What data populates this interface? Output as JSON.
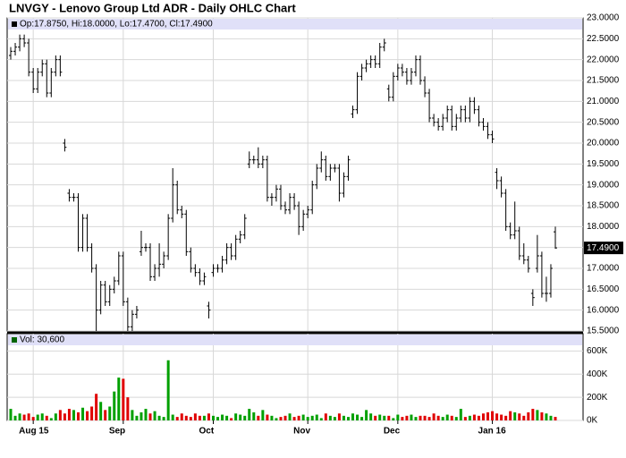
{
  "chart_data": {
    "type": "ohlc",
    "title": "LNVGY - Lenovo Group Ltd ADR - Daily OHLC Chart",
    "ohlc_label": "Op:17.8750, Hi:18.0000, Lo:17.4700, Cl:17.4900",
    "volume_label": "Vol: 30,600",
    "last_price_label": "17.4900",
    "categories": [
      null,
      null,
      null,
      null,
      null,
      "Aug 15",
      null,
      null,
      null,
      null,
      null,
      null,
      null,
      null,
      null,
      null,
      null,
      null,
      null,
      null,
      null,
      null,
      null,
      null,
      null,
      "Sep",
      null,
      null,
      null,
      null,
      null,
      null,
      null,
      null,
      null,
      null,
      null,
      null,
      null,
      null,
      null,
      null,
      null,
      null,
      null,
      "Oct",
      null,
      null,
      null,
      null,
      null,
      null,
      null,
      null,
      null,
      null,
      null,
      null,
      null,
      null,
      null,
      null,
      null,
      null,
      null,
      null,
      "Nov",
      null,
      null,
      null,
      null,
      null,
      null,
      null,
      null,
      null,
      null,
      null,
      null,
      null,
      null,
      null,
      null,
      null,
      null,
      null,
      "Dec",
      null,
      null,
      null,
      null,
      null,
      null,
      null,
      null,
      null,
      null,
      null,
      null,
      null,
      null,
      null,
      null,
      null,
      null,
      null,
      null,
      "Jan 16",
      null,
      null,
      null,
      null,
      null,
      null,
      null,
      null,
      null,
      null,
      null,
      null,
      null,
      null
    ],
    "open": [
      22.1,
      22.2,
      22.3,
      22.5,
      22.4,
      21.7,
      21.3,
      21.7,
      21.9,
      21.2,
      21.7,
      22.0,
      20.0,
      18.8,
      18.7,
      18.7,
      17.5,
      18.2,
      17.5,
      17.0,
      16.0,
      16.6,
      16.2,
      16.5,
      16.7,
      17.3,
      16.2,
      15.6,
      15.9,
      17.4,
      17.5,
      17.5,
      16.8,
      17.0,
      17.1,
      17.3,
      18.2,
      19.0,
      18.4,
      18.3,
      17.4,
      17.0,
      16.9,
      16.7,
      16.1,
      16.9,
      17.0,
      17.0,
      17.2,
      17.5,
      17.3,
      17.7,
      17.8,
      19.5,
      19.6,
      19.6,
      19.5,
      19.6,
      18.7,
      18.7,
      18.9,
      18.5,
      18.4,
      18.7,
      18.5,
      18.0,
      18.3,
      18.4,
      19.0,
      19.4,
      19.6,
      19.2,
      19.4,
      19.4,
      18.8,
      19.2,
      20.7,
      20.8,
      21.6,
      21.8,
      21.9,
      22.0,
      21.9,
      22.3,
      21.3,
      21.1,
      21.6,
      21.8,
      21.7,
      21.5,
      21.7,
      22.0,
      21.5,
      21.2,
      20.6,
      20.5,
      20.4,
      20.6,
      20.8,
      20.4,
      20.6,
      20.8,
      20.6,
      21.0,
      20.8,
      20.5,
      20.4,
      20.2,
      19.3,
      19.1,
      18.8,
      18.0,
      17.8,
      17.9,
      17.3,
      17.2,
      16.4,
      17.0,
      17.3,
      16.4,
      16.4,
      17.875
    ],
    "high": [
      22.3,
      22.4,
      22.6,
      22.6,
      22.5,
      21.8,
      21.8,
      22.0,
      22.0,
      21.8,
      22.1,
      22.1,
      20.1,
      18.9,
      18.8,
      18.8,
      18.3,
      18.3,
      17.6,
      17.1,
      16.7,
      16.7,
      16.6,
      16.8,
      17.4,
      17.4,
      16.3,
      16.0,
      16.1,
      17.9,
      17.6,
      17.6,
      17.1,
      17.6,
      17.4,
      18.3,
      19.4,
      19.1,
      18.5,
      18.4,
      17.5,
      17.1,
      17.0,
      16.9,
      16.2,
      17.1,
      17.1,
      17.3,
      17.6,
      17.6,
      17.8,
      17.9,
      18.3,
      19.8,
      19.7,
      19.9,
      19.7,
      19.7,
      18.8,
      19.0,
      19.0,
      18.6,
      18.8,
      18.8,
      18.6,
      18.4,
      18.5,
      19.1,
      19.5,
      19.8,
      19.7,
      19.5,
      19.5,
      19.5,
      19.3,
      19.7,
      20.9,
      21.7,
      21.9,
      22.0,
      22.1,
      22.1,
      22.4,
      22.5,
      21.4,
      21.7,
      21.9,
      21.9,
      21.8,
      21.8,
      22.1,
      22.1,
      21.6,
      21.3,
      20.7,
      20.6,
      20.7,
      20.9,
      20.9,
      20.7,
      20.9,
      20.9,
      21.1,
      21.1,
      20.9,
      20.6,
      20.5,
      20.3,
      19.4,
      19.2,
      18.9,
      18.1,
      18.6,
      18.0,
      17.6,
      17.3,
      16.5,
      17.8,
      17.4,
      16.8,
      17.1,
      18.0
    ],
    "low": [
      22.0,
      22.1,
      22.2,
      22.3,
      21.6,
      21.2,
      21.2,
      21.6,
      21.1,
      21.1,
      21.6,
      21.6,
      19.8,
      18.6,
      18.6,
      17.4,
      17.4,
      17.4,
      16.9,
      15.5,
      15.9,
      16.1,
      16.1,
      16.4,
      16.6,
      16.1,
      15.5,
      15.5,
      15.8,
      17.3,
      17.4,
      16.7,
      16.7,
      16.8,
      17.0,
      17.2,
      18.1,
      18.3,
      18.2,
      17.3,
      16.9,
      16.8,
      16.6,
      16.6,
      15.8,
      16.8,
      16.9,
      16.9,
      17.1,
      17.2,
      17.2,
      17.6,
      17.7,
      19.4,
      19.5,
      19.4,
      19.4,
      18.6,
      18.5,
      18.6,
      18.4,
      18.3,
      18.3,
      18.4,
      17.8,
      17.9,
      18.2,
      18.3,
      18.9,
      19.3,
      19.1,
      19.1,
      19.3,
      18.6,
      18.7,
      19.1,
      20.6,
      20.7,
      21.5,
      21.7,
      21.8,
      21.8,
      21.8,
      22.2,
      21.0,
      21.0,
      21.5,
      21.6,
      21.4,
      21.4,
      21.6,
      21.4,
      21.1,
      20.5,
      20.4,
      20.3,
      20.3,
      20.5,
      20.3,
      20.3,
      20.5,
      20.5,
      20.5,
      20.7,
      20.4,
      20.3,
      20.1,
      20.0,
      18.9,
      18.7,
      17.9,
      17.7,
      17.7,
      17.2,
      17.1,
      16.9,
      16.1,
      16.9,
      16.3,
      16.2,
      16.3,
      17.47
    ],
    "close": [
      22.2,
      22.3,
      22.5,
      22.4,
      21.7,
      21.3,
      21.7,
      21.9,
      21.2,
      21.7,
      22.0,
      21.7,
      19.9,
      18.7,
      18.7,
      17.5,
      18.2,
      17.5,
      17.0,
      16.0,
      16.6,
      16.2,
      16.5,
      16.7,
      17.3,
      16.2,
      15.6,
      15.9,
      16.0,
      17.5,
      17.5,
      16.8,
      17.0,
      17.1,
      17.3,
      18.2,
      19.0,
      18.4,
      18.3,
      17.4,
      17.0,
      16.9,
      16.7,
      16.8,
      16.0,
      17.0,
      17.0,
      17.2,
      17.5,
      17.3,
      17.7,
      17.8,
      18.2,
      19.6,
      19.6,
      19.5,
      19.6,
      18.7,
      18.7,
      18.9,
      18.5,
      18.4,
      18.7,
      18.5,
      18.0,
      18.3,
      18.4,
      19.0,
      19.4,
      19.6,
      19.2,
      19.4,
      19.4,
      18.8,
      19.2,
      19.6,
      20.8,
      21.6,
      21.8,
      21.9,
      22.0,
      21.9,
      22.3,
      22.4,
      21.1,
      21.6,
      21.8,
      21.7,
      21.5,
      21.7,
      22.0,
      21.5,
      21.2,
      20.6,
      20.5,
      20.4,
      20.6,
      20.8,
      20.4,
      20.6,
      20.8,
      20.6,
      21.0,
      20.8,
      20.5,
      20.4,
      20.2,
      20.1,
      19.1,
      18.8,
      18.0,
      17.8,
      17.9,
      17.3,
      17.2,
      17.0,
      16.3,
      17.3,
      16.4,
      16.4,
      17.0,
      17.49
    ],
    "volume": [
      100000,
      40000,
      60000,
      50000,
      60000,
      30000,
      50000,
      60000,
      40000,
      20000,
      60000,
      90000,
      60000,
      100000,
      90000,
      70000,
      110000,
      80000,
      120000,
      230000,
      160000,
      90000,
      120000,
      250000,
      370000,
      360000,
      200000,
      90000,
      40000,
      70000,
      100000,
      60000,
      80000,
      40000,
      30000,
      520000,
      50000,
      30000,
      60000,
      40000,
      30000,
      60000,
      40000,
      40000,
      60000,
      40000,
      30000,
      50000,
      40000,
      20000,
      60000,
      50000,
      40000,
      100000,
      70000,
      40000,
      90000,
      50000,
      40000,
      20000,
      30000,
      40000,
      60000,
      30000,
      40000,
      50000,
      30000,
      40000,
      50000,
      20000,
      60000,
      40000,
      30000,
      60000,
      40000,
      30000,
      60000,
      50000,
      30000,
      90000,
      60000,
      40000,
      50000,
      40000,
      40000,
      20000,
      50000,
      30000,
      40000,
      50000,
      30000,
      40000,
      40000,
      30000,
      60000,
      40000,
      30000,
      50000,
      40000,
      30000,
      100000,
      30000,
      40000,
      50000,
      40000,
      60000,
      70000,
      80000,
      60000,
      50000,
      40000,
      80000,
      70000,
      60000,
      40000,
      70000,
      100000,
      90000,
      70000,
      60000,
      40000,
      30600
    ],
    "ylim": [
      15.5,
      23.0
    ],
    "yticks": [
      {
        "value": 15.5,
        "label": "15.5000"
      },
      {
        "value": 16,
        "label": "16.0000"
      },
      {
        "value": 16.5,
        "label": "16.5000"
      },
      {
        "value": 17,
        "label": "17.0000"
      },
      {
        "value": 17.5,
        "label": "17.5000"
      },
      {
        "value": 18,
        "label": "18.0000"
      },
      {
        "value": 18.5,
        "label": "18.5000"
      },
      {
        "value": 19,
        "label": "19.0000"
      },
      {
        "value": 19.5,
        "label": "19.5000"
      },
      {
        "value": 20,
        "label": "20.0000"
      },
      {
        "value": 20.5,
        "label": "20.5000"
      },
      {
        "value": 21,
        "label": "21.0000"
      },
      {
        "value": 21.5,
        "label": "21.5000"
      },
      {
        "value": 22,
        "label": "22.0000"
      },
      {
        "value": 22.5,
        "label": "22.5000"
      },
      {
        "value": 23,
        "label": "23.0000"
      }
    ],
    "y2lim": [
      0,
      750000
    ],
    "y2ticks": [
      {
        "value": 0,
        "label": "0K"
      },
      {
        "value": 200000,
        "label": "200K"
      },
      {
        "value": 400000,
        "label": "400K"
      },
      {
        "value": 600000,
        "label": "600K"
      }
    ],
    "grid": true,
    "bar_color": "#000000",
    "up_color": "#00a000",
    "down_color": "#e00000",
    "header_color": "#e0e0f8",
    "volume_marker_color": "#006400"
  }
}
